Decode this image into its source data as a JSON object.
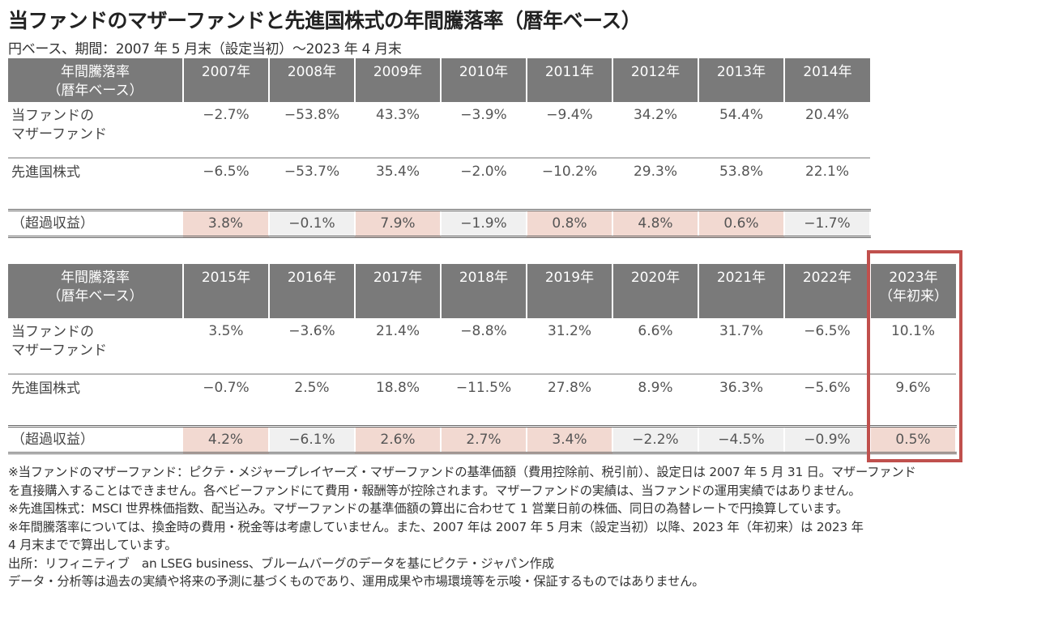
{
  "title": "当ファンドのマザーファンドと先進国株式の年間騰落率（暦年ベース）",
  "subtitle": "円ベース、期間：2007 年 5 月末（設定当初）～2023 年 4 月末",
  "colors": {
    "header_bg": "#7a7a7a",
    "positive_bg": "#f2d9d1",
    "negative_bg": "#f0f0f0",
    "highlight": "#c0504d"
  },
  "table1": {
    "header": [
      "年間騰落率（暦年ベース）",
      "2007年",
      "2008年",
      "2009年",
      "2010年",
      "2011年",
      "2012年",
      "2013年",
      "2014年"
    ],
    "header_label_lines": [
      "年間騰落率",
      "（暦年ベース）"
    ],
    "rows": [
      {
        "label_lines": [
          "当ファンドの",
          "マザーファンド"
        ],
        "values": [
          "−2.7%",
          "−53.8%",
          "43.3%",
          "−3.9%",
          "−9.4%",
          "34.2%",
          "54.4%",
          "20.4%"
        ]
      },
      {
        "label_lines": [
          "先進国株式"
        ],
        "values": [
          "−6.5%",
          "−53.7%",
          "35.4%",
          "−2.0%",
          "−10.2%",
          "29.3%",
          "53.8%",
          "22.1%"
        ]
      }
    ],
    "excess": {
      "label": "（超過収益）",
      "values": [
        "3.8%",
        "−0.1%",
        "7.9%",
        "−1.9%",
        "0.8%",
        "4.8%",
        "0.6%",
        "−1.7%"
      ]
    }
  },
  "table2": {
    "header": [
      "年間騰落率（暦年ベース）",
      "2015年",
      "2016年",
      "2017年",
      "2018年",
      "2019年",
      "2020年",
      "2021年",
      "2022年",
      "2023年（年初来）"
    ],
    "header_label_lines": [
      "年間騰落率",
      "（暦年ベース）"
    ],
    "last_header_lines": [
      "2023年",
      "（年初来）"
    ],
    "rows": [
      {
        "label_lines": [
          "当ファンドの",
          "マザーファンド"
        ],
        "values": [
          "3.5%",
          "−3.6%",
          "21.4%",
          "−8.8%",
          "31.2%",
          "6.6%",
          "31.7%",
          "−6.5%",
          "10.1%"
        ]
      },
      {
        "label_lines": [
          "先進国株式"
        ],
        "values": [
          "−0.7%",
          "2.5%",
          "18.8%",
          "−11.5%",
          "27.8%",
          "8.9%",
          "36.3%",
          "−5.6%",
          "9.6%"
        ]
      }
    ],
    "excess": {
      "label": "（超過収益）",
      "values": [
        "4.2%",
        "−6.1%",
        "2.6%",
        "2.7%",
        "3.4%",
        "−2.2%",
        "−4.5%",
        "−0.9%",
        "0.5%"
      ]
    }
  },
  "notes": [
    "※当ファンドのマザーファンド：ピクテ・メジャープレイヤーズ・マザーファンドの基準価額（費用控除前、税引前）、設定日は 2007 年 5 月 31 日。マザーファンド",
    "を直接購入することはできません。各ベビーファンドにて費用・報酬等が控除されます。マザーファンドの実績は、当ファンドの運用実績ではありません。",
    "※先進国株式：MSCI 世界株価指数、配当込み。マザーファンドの基準価額の算出に合わせて 1 営業日前の株価、同日の為替レートで円換算しています。",
    "※年間騰落率については、換金時の費用・税金等は考慮していません。また、2007 年は 2007 年 5 月末（設定当初）以降、2023 年（年初来）は 2023 年",
    "4 月末までで算出しています。",
    "出所：リフィニティブ　an LSEG business、ブルームバーグのデータを基にピクテ・ジャパン作成",
    "データ・分析等は過去の実績や将来の予測に基づくものであり、運用成果や市場環境等を示唆・保証するものではありません。"
  ]
}
